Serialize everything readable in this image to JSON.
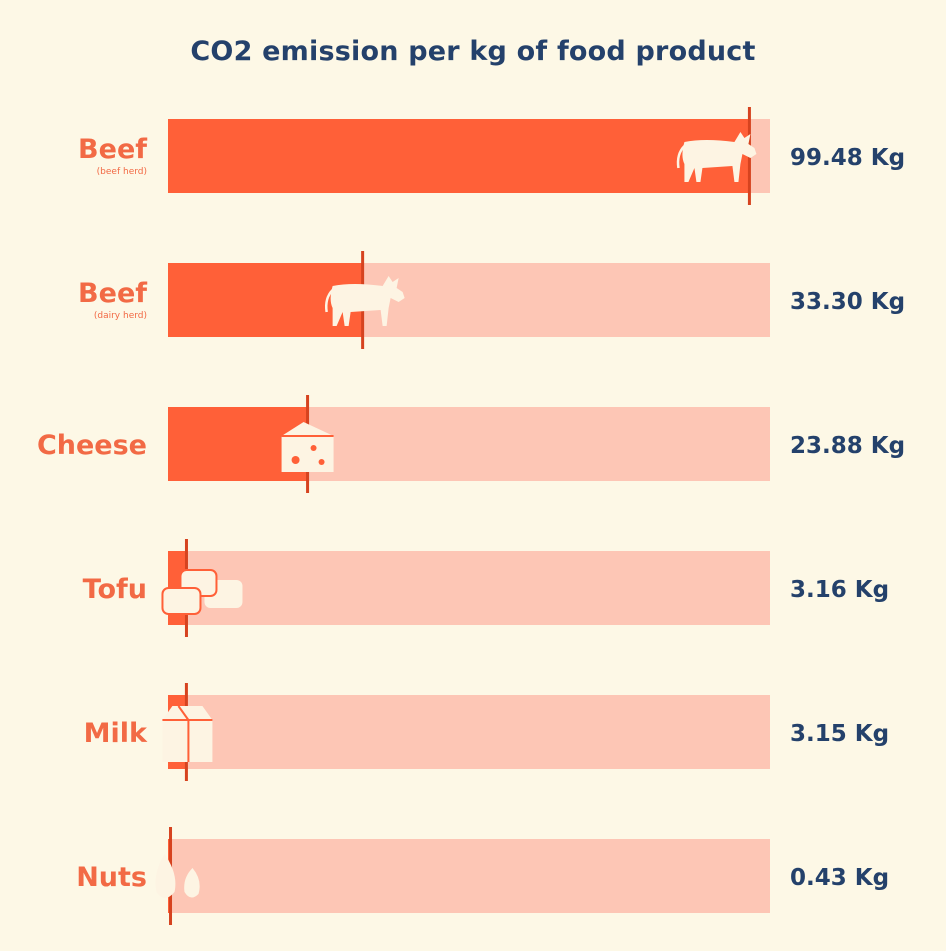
{
  "title": "CO2 emission per kg of food product",
  "colors": {
    "background": "#fdf8e6",
    "bar_filled": "#ff6038",
    "bar_track": "#fdc6b5",
    "label": "#f26a45",
    "value": "#24416b",
    "marker": "#d6431f",
    "icon": "#fdf4e3"
  },
  "chart_data": {
    "type": "bar",
    "orientation": "horizontal",
    "title": "CO2 emission per kg of food product",
    "unit": "Kg",
    "xlim": [
      0,
      103
    ],
    "categories": [
      "Beef",
      "Beef",
      "Cheese",
      "Tofu",
      "Milk",
      "Nuts"
    ],
    "subtitles": [
      "(beef herd)",
      "(dairy herd)",
      "",
      "",
      "",
      ""
    ],
    "values": [
      99.48,
      33.3,
      23.88,
      3.16,
      3.15,
      0.43
    ],
    "value_labels": [
      "99.48 Kg",
      "33.30 Kg",
      "23.88 Kg",
      "3.16 Kg",
      "3.15 Kg",
      "0.43 Kg"
    ],
    "icons": [
      "cow-icon",
      "cow-icon",
      "cheese-icon",
      "tofu-icon",
      "milk-carton-icon",
      "almond-icon"
    ],
    "grid": false,
    "legend": "none"
  }
}
